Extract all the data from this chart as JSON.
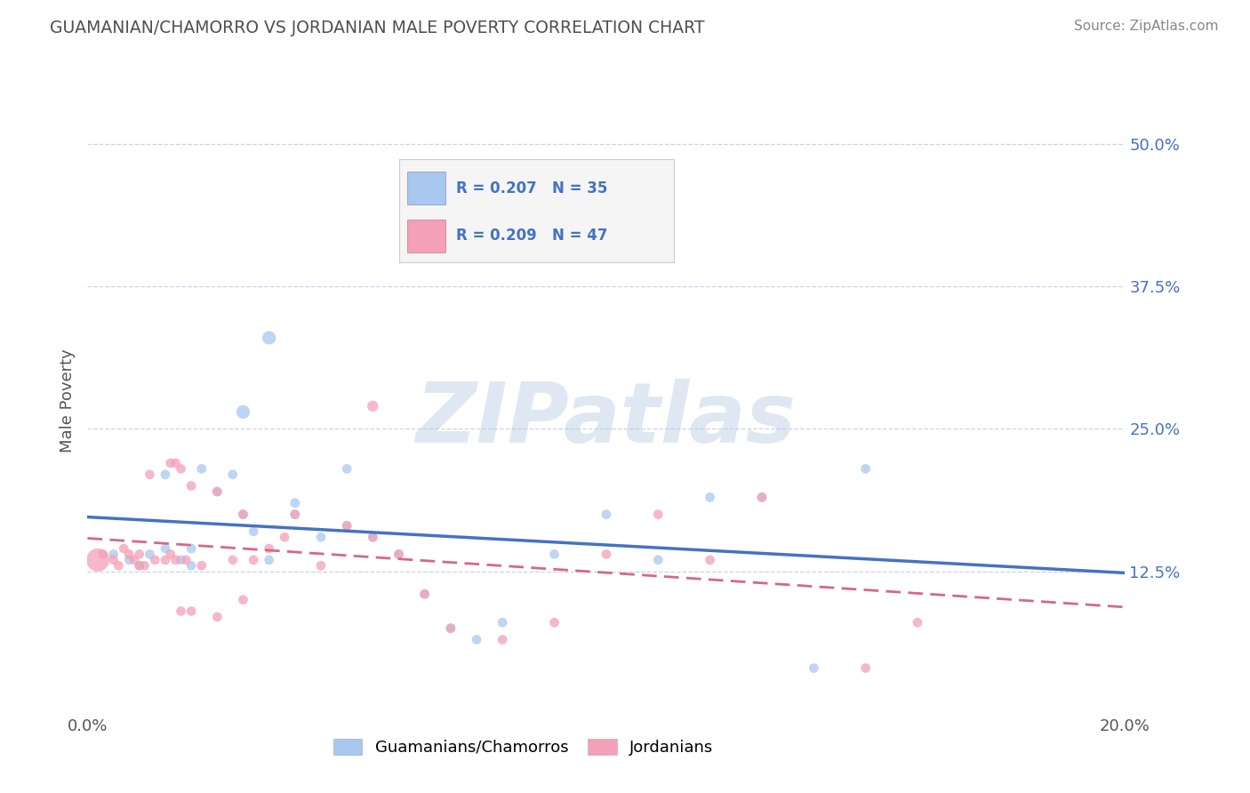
{
  "title": "GUAMANIAN/CHAMORRO VS JORDANIAN MALE POVERTY CORRELATION CHART",
  "source": "Source: ZipAtlas.com",
  "ylabel_label": "Male Poverty",
  "legend_label1": "Guamanians/Chamorros",
  "legend_label2": "Jordanians",
  "r1": 0.207,
  "n1": 35,
  "r2": 0.209,
  "n2": 47,
  "color_blue": "#a8c8f0",
  "color_pink": "#f4a0b8",
  "line_blue": "#4472c4",
  "line_pink": "#d4688a",
  "watermark": "ZIPatlas",
  "blue_dots_x": [
    0.5,
    0.8,
    1.0,
    1.2,
    1.5,
    1.5,
    1.8,
    2.0,
    2.0,
    2.2,
    2.5,
    2.8,
    3.0,
    3.2,
    3.5,
    4.0,
    4.5,
    5.0,
    5.5,
    6.0,
    6.5,
    7.0,
    7.5,
    8.0,
    9.0,
    10.0,
    11.0,
    13.0,
    14.0,
    3.0,
    3.5,
    4.0,
    5.0,
    12.0,
    15.0
  ],
  "blue_dots_y": [
    14.0,
    13.5,
    13.0,
    14.0,
    14.5,
    21.0,
    13.5,
    13.0,
    14.5,
    21.5,
    19.5,
    21.0,
    17.5,
    16.0,
    13.5,
    17.5,
    15.5,
    16.5,
    15.5,
    14.0,
    10.5,
    7.5,
    6.5,
    8.0,
    14.0,
    17.5,
    13.5,
    19.0,
    4.0,
    26.5,
    33.0,
    18.5,
    21.5,
    19.0,
    21.5
  ],
  "blue_dots_size": [
    60,
    60,
    60,
    60,
    60,
    60,
    60,
    60,
    60,
    60,
    60,
    60,
    60,
    60,
    60,
    60,
    60,
    60,
    60,
    60,
    60,
    60,
    60,
    60,
    60,
    60,
    60,
    60,
    60,
    120,
    120,
    60,
    60,
    60,
    60
  ],
  "pink_dots_x": [
    0.2,
    0.3,
    0.5,
    0.6,
    0.7,
    0.8,
    0.9,
    1.0,
    1.0,
    1.1,
    1.2,
    1.3,
    1.5,
    1.6,
    1.7,
    1.7,
    1.8,
    1.9,
    2.0,
    2.2,
    2.5,
    2.8,
    3.0,
    3.2,
    3.5,
    3.8,
    4.0,
    4.5,
    5.0,
    5.5,
    6.0,
    6.5,
    7.0,
    8.0,
    9.0,
    10.0,
    11.0,
    12.0,
    13.0,
    15.0,
    1.6,
    1.8,
    2.0,
    2.5,
    3.0,
    5.5,
    16.0
  ],
  "pink_dots_y": [
    13.5,
    14.0,
    13.5,
    13.0,
    14.5,
    14.0,
    13.5,
    13.0,
    14.0,
    13.0,
    21.0,
    13.5,
    13.5,
    14.0,
    13.5,
    22.0,
    21.5,
    13.5,
    20.0,
    13.0,
    19.5,
    13.5,
    17.5,
    13.5,
    14.5,
    15.5,
    17.5,
    13.0,
    16.5,
    15.5,
    14.0,
    10.5,
    7.5,
    6.5,
    8.0,
    14.0,
    17.5,
    13.5,
    19.0,
    4.0,
    22.0,
    9.0,
    9.0,
    8.5,
    10.0,
    27.0,
    8.0
  ],
  "pink_dots_size": [
    350,
    60,
    60,
    60,
    60,
    60,
    60,
    60,
    60,
    60,
    60,
    60,
    60,
    60,
    60,
    60,
    60,
    60,
    60,
    60,
    60,
    60,
    60,
    60,
    60,
    60,
    60,
    60,
    60,
    60,
    60,
    60,
    60,
    60,
    60,
    60,
    60,
    60,
    60,
    60,
    60,
    60,
    60,
    60,
    60,
    80,
    60
  ],
  "xlim": [
    0.0,
    20.0
  ],
  "ylim": [
    0.0,
    55.0
  ],
  "yticks": [
    12.5,
    25.0,
    37.5,
    50.0
  ],
  "ytick_labels": [
    "12.5%",
    "25.0%",
    "37.5%",
    "50.0%"
  ],
  "xticks": [
    0.0,
    20.0
  ],
  "xtick_labels": [
    "0.0%",
    "20.0%"
  ],
  "background_color": "#ffffff",
  "grid_color": "#c8d4e8",
  "title_color": "#505050",
  "source_color": "#888888",
  "tick_label_color": "#4472c4"
}
